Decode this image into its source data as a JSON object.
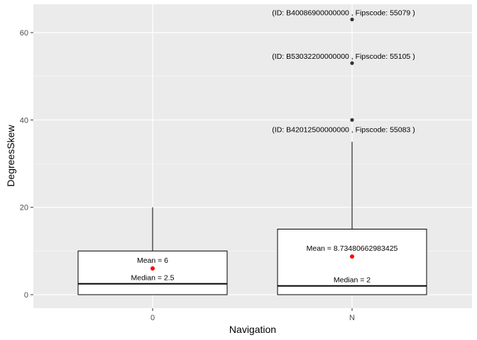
{
  "chart_data": {
    "type": "boxplot",
    "xlabel": "Navigation",
    "ylabel": "DegreesSkew",
    "categories": [
      "0",
      "N"
    ],
    "ylim": [
      -3,
      64
    ],
    "yticks": [
      0,
      20,
      40,
      60
    ],
    "grid": true,
    "boxes": [
      {
        "category": "0",
        "q1": 0,
        "median": 2.5,
        "q3": 10,
        "whisker_low": 0,
        "whisker_high": 20,
        "mean": 6,
        "mean_label": "Mean = 6",
        "median_label": "Median = 2.5",
        "outliers": []
      },
      {
        "category": "N",
        "q1": 0,
        "median": 2,
        "q3": 15,
        "whisker_low": 0,
        "whisker_high": 35,
        "mean": 8.73480662983425,
        "mean_label": "Mean = 8.73480662983425",
        "median_label": "Median = 2",
        "outliers": [
          {
            "value": 63,
            "label": "(ID: B40086900000000 , Fipscode: 55079 )"
          },
          {
            "value": 53,
            "label": "(ID: B53032200000000 , Fipscode: 55105 )"
          },
          {
            "value": 40,
            "label": "(ID: B42012500000000 , Fipscode: 55083 )"
          }
        ]
      }
    ],
    "colors": {
      "panel": "#ebebeb",
      "grid": "#ffffff",
      "box_fill": "#ffffff",
      "box_stroke": "#000000",
      "outlier": "#333333",
      "mean_point": "#ff0000"
    }
  }
}
